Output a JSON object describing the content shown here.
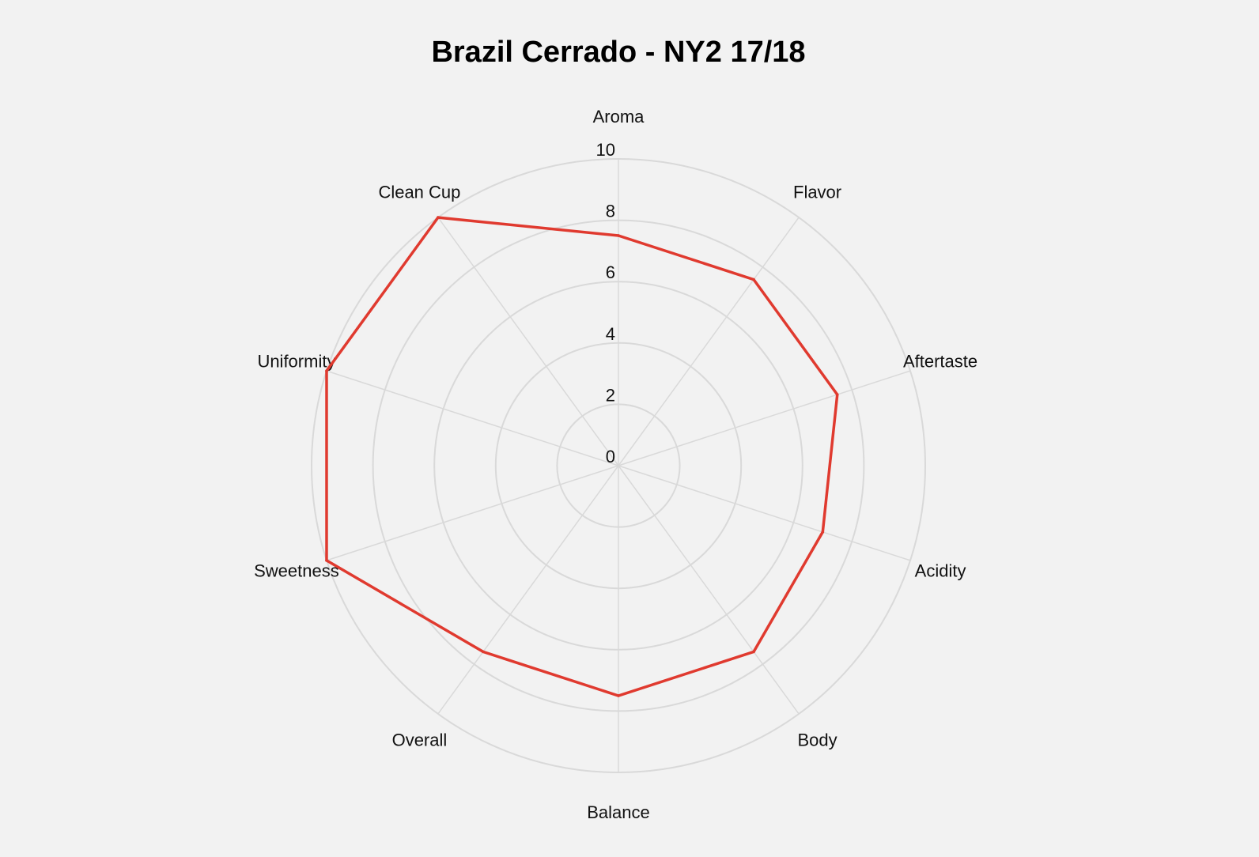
{
  "chart_data": {
    "type": "radar",
    "title": "Brazil Cerrado - NY2 17/18",
    "categories": [
      "Aroma",
      "Flavor",
      "Aftertaste",
      "Acidity",
      "Body",
      "Balance",
      "Overall",
      "Sweetness",
      "Uniformity",
      "Clean Cup"
    ],
    "radial_ticks": [
      "0",
      "2",
      "4",
      "6",
      "8",
      "10"
    ],
    "rlim": [
      0,
      10
    ],
    "grid": true,
    "legend": "none",
    "series": [
      {
        "values": [
          7.5,
          7.5,
          7.5,
          7.0,
          7.5,
          7.5,
          7.5,
          10,
          10,
          10
        ],
        "color": "#e03a2f"
      }
    ]
  }
}
